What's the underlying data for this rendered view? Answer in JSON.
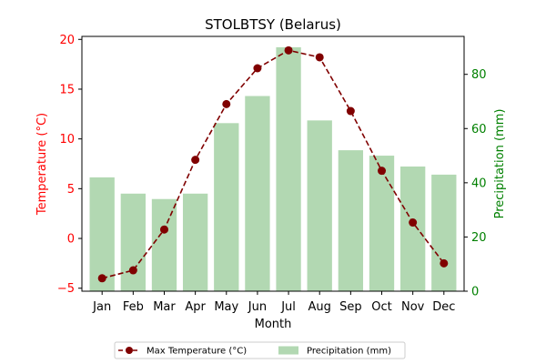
{
  "chart_data": {
    "type": "bar+line",
    "title": "STOLBTSY (Belarus)",
    "xlabel": "Month",
    "categories": [
      "Jan",
      "Feb",
      "Mar",
      "Apr",
      "May",
      "Jun",
      "Jul",
      "Aug",
      "Sep",
      "Oct",
      "Nov",
      "Dec"
    ],
    "left_axis": {
      "label": "Temperature (°C)",
      "color": "#ff0000",
      "ylim": [
        -5.3,
        20.3
      ],
      "ticks": [
        -5,
        0,
        5,
        10,
        15,
        20
      ]
    },
    "right_axis": {
      "label": "Precipitation (mm)",
      "color": "#008000",
      "ylim": [
        0,
        94
      ],
      "ticks": [
        0,
        20,
        40,
        60,
        80
      ]
    },
    "series": [
      {
        "name": "Max Temperature (°C)",
        "kind": "line",
        "axis": "left",
        "color": "#800000",
        "style": "dashed-with-circle-markers",
        "values": [
          -4.0,
          -3.2,
          0.9,
          7.9,
          13.5,
          17.1,
          18.9,
          18.2,
          12.8,
          6.8,
          1.6,
          -2.5
        ]
      },
      {
        "name": "Precipitation (mm)",
        "kind": "bar",
        "axis": "right",
        "color": "#b2d8b2",
        "values": [
          42,
          36,
          34,
          36,
          62,
          72,
          90,
          63,
          52,
          50,
          46,
          43
        ]
      }
    ],
    "legend": {
      "placement": "bottom-center",
      "columns": 2
    },
    "grid": false
  }
}
